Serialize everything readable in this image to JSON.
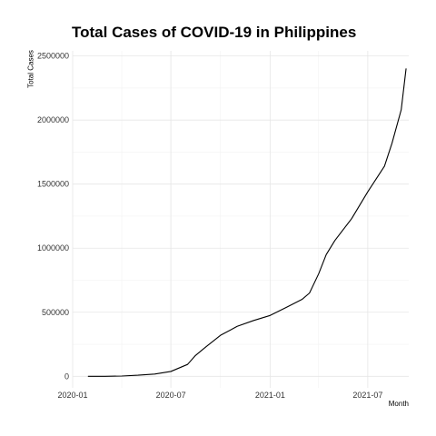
{
  "chart_data": {
    "type": "line",
    "title": "Total Cases of COVID-19 in Philippines",
    "xlabel": "Month",
    "ylabel": "Total Cases",
    "x_ticks": [
      "2020-01",
      "2020-07",
      "2021-01",
      "2021-07"
    ],
    "y_ticks": [
      "0",
      "500000",
      "1000000",
      "1500000",
      "2000000",
      "2500000"
    ],
    "ylim": [
      -90000,
      2540000
    ],
    "xlim": [
      "2020-01-01",
      "2021-09-15"
    ],
    "grid": true,
    "legend": "none",
    "line_color": "#000000",
    "series": [
      {
        "x": [
          "2020-01-30",
          "2020-03-01",
          "2020-04-01",
          "2020-05-01",
          "2020-06-01",
          "2020-07-01",
          "2020-08-01",
          "2020-08-15",
          "2020-09-01",
          "2020-10-01",
          "2020-11-01",
          "2020-12-01",
          "2021-01-01",
          "2021-02-01",
          "2021-03-01",
          "2021-03-15",
          "2021-04-01",
          "2021-04-15",
          "2021-05-01",
          "2021-06-01",
          "2021-07-01",
          "2021-08-01",
          "2021-08-15",
          "2021-09-01",
          "2021-09-10"
        ],
        "values": [
          1,
          3,
          2100,
          8500,
          18000,
          38000,
          93000,
          160000,
          220000,
          320000,
          390000,
          435000,
          475000,
          540000,
          600000,
          650000,
          800000,
          950000,
          1060000,
          1230000,
          1440000,
          1640000,
          1820000,
          2080000,
          2400000
        ]
      }
    ]
  }
}
